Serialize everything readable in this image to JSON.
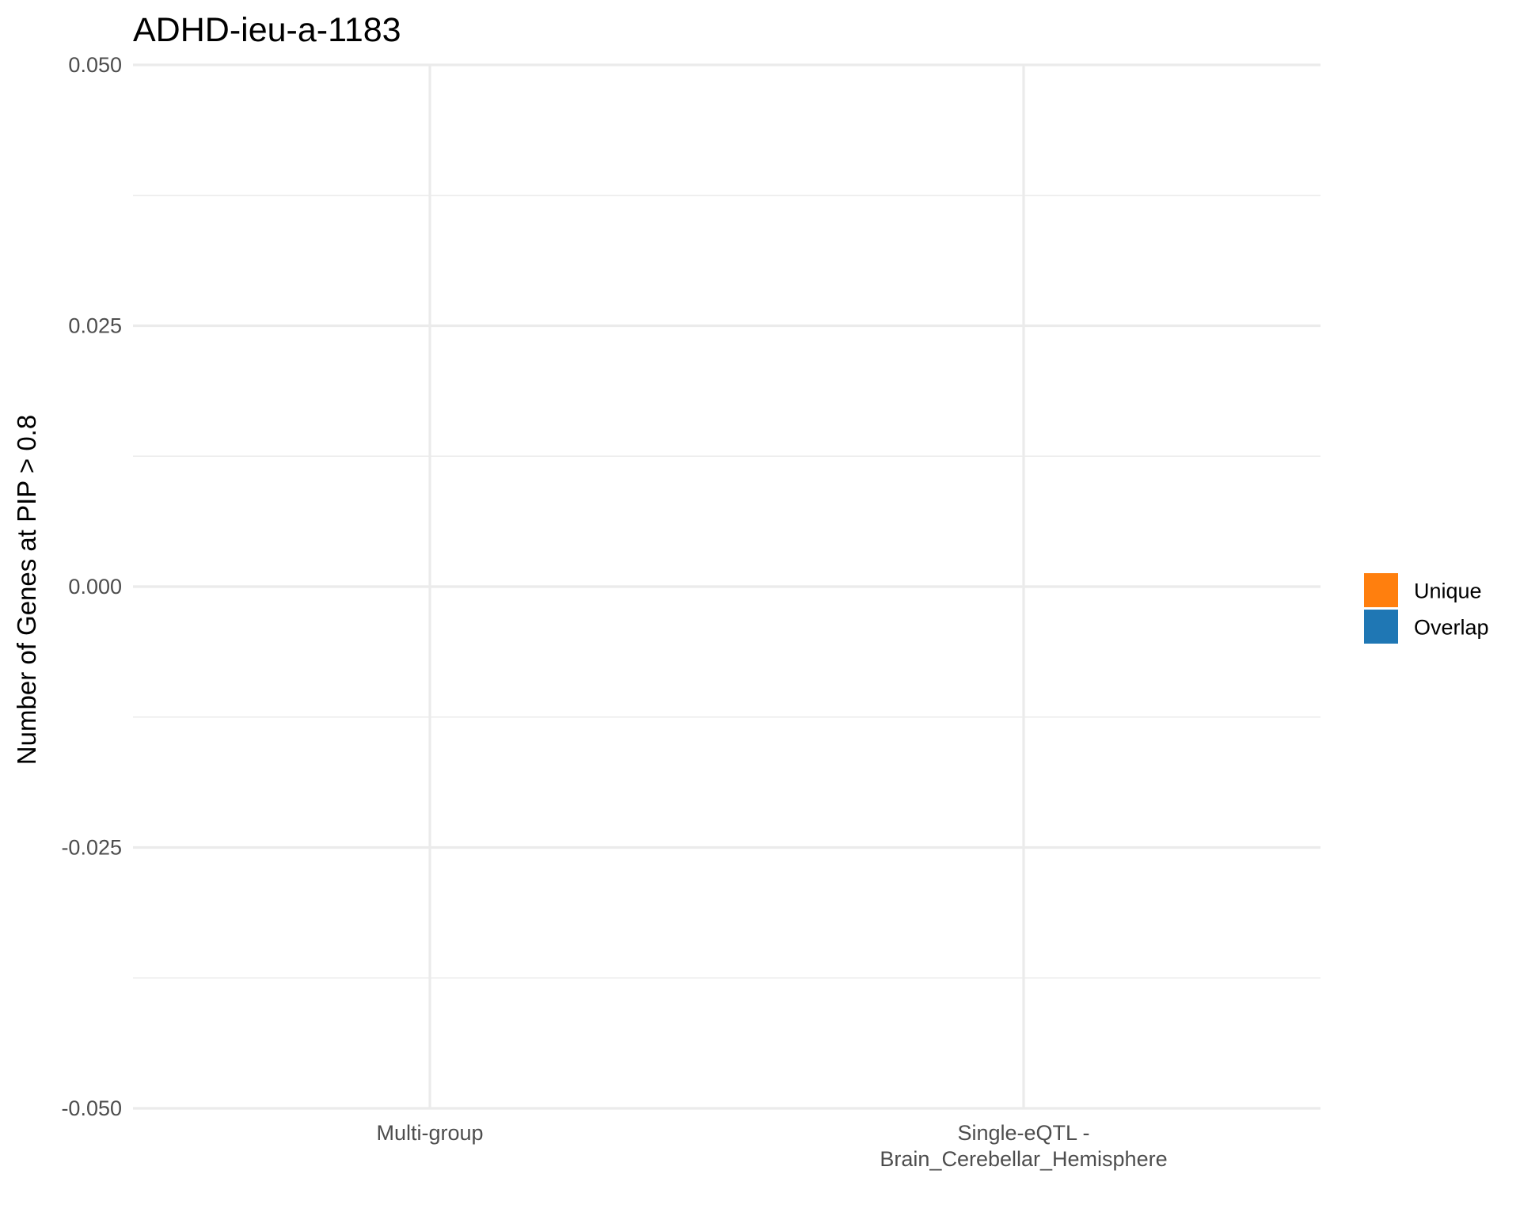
{
  "chart_data": {
    "type": "bar",
    "stacked": true,
    "title": "ADHD-ieu-a-1183",
    "xlabel": "",
    "ylabel": "Number of Genes at PIP > 0.8",
    "categories": [
      [
        "Multi-group"
      ],
      [
        "Single-eQTL -",
        "Brain_Cerebellar_Hemisphere"
      ]
    ],
    "series": [
      {
        "name": "Unique",
        "color": "#ff7f0e",
        "values": [
          0,
          0
        ]
      },
      {
        "name": "Overlap",
        "color": "#1f77b4",
        "values": [
          0,
          0
        ]
      }
    ],
    "ylim": [
      -0.05,
      0.05
    ],
    "yticks": [
      -0.05,
      -0.025,
      0,
      0.025,
      0.05
    ],
    "ytick_labels": [
      "-0.050",
      "-0.025",
      "0.000",
      "0.025",
      "0.050"
    ],
    "grid": true,
    "legend_position": "right"
  }
}
